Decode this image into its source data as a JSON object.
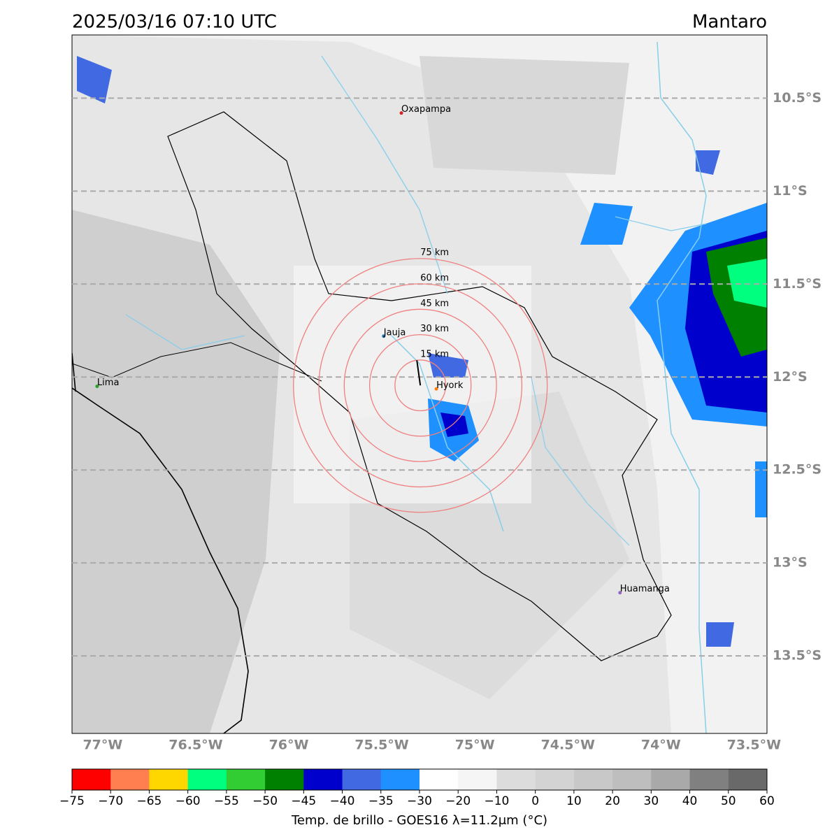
{
  "header": {
    "title": "2025/03/16 07:10 UTC",
    "region": "Mantaro"
  },
  "map": {
    "lon_extent": [
      -77.165,
      -73.43
    ],
    "lat_extent": [
      -10.16,
      -13.917
    ],
    "lat_ticks": [
      {
        "value": -10.5,
        "label": "10.5°S"
      },
      {
        "value": -11,
        "label": "11°S"
      },
      {
        "value": -11.5,
        "label": "11.5°S"
      },
      {
        "value": -12,
        "label": "12°S"
      },
      {
        "value": -12.5,
        "label": "12.5°S"
      },
      {
        "value": -13,
        "label": "13°S"
      },
      {
        "value": -13.5,
        "label": "13.5°S"
      }
    ],
    "lon_ticks": [
      {
        "value": -77,
        "label": "77°W"
      },
      {
        "value": -76.5,
        "label": "76.5°W"
      },
      {
        "value": -76,
        "label": "76°W"
      },
      {
        "value": -75.5,
        "label": "75.5°W"
      },
      {
        "value": -75,
        "label": "75°W"
      },
      {
        "value": -74.5,
        "label": "74.5°W"
      },
      {
        "value": -74,
        "label": "74°W"
      },
      {
        "value": -73.5,
        "label": "73.5°W"
      }
    ],
    "cities": [
      {
        "name": "Oxapampa",
        "lon": -75.395,
        "lat": -10.58,
        "color": "#d62728"
      },
      {
        "name": "Jauja",
        "lon": -75.49,
        "lat": -11.78,
        "color": "#1f77b4"
      },
      {
        "name": "Lima",
        "lon": -77.03,
        "lat": -12.05,
        "color": "#2ca02c"
      },
      {
        "name": "Hyork",
        "lon": -75.207,
        "lat": -12.064,
        "color": "#ff7f0e"
      },
      {
        "name": "Huamanga",
        "lon": -74.22,
        "lat": -13.16,
        "color": "#9467bd"
      }
    ],
    "rings": {
      "lon": -75.293,
      "lat": -12.045,
      "color": "#f08080",
      "radii": [
        {
          "value": 15,
          "label": "15 km"
        },
        {
          "value": 30,
          "label": "30 km"
        },
        {
          "value": 45,
          "label": "45 km"
        },
        {
          "value": 60,
          "label": "60 km"
        },
        {
          "value": 75,
          "label": "75 km"
        }
      ]
    }
  },
  "colorbar": {
    "label": "Temp. de brillo - GOES16 λ=11.2μm (°C)",
    "colors": [
      "#ff0000",
      "#ff7f50",
      "#ffd700",
      "#00ff7f",
      "#32cd32",
      "#008000",
      "#0000cd",
      "#4169e1",
      "#1e90ff",
      "#ffffff",
      "#f5f5f5",
      "#dcdcdc",
      "#d3d3d3",
      "#c8c8c8",
      "#bebebe",
      "#a9a9a9",
      "#808080",
      "#696969",
      "#000000"
    ],
    "ticks": [
      {
        "value": -75,
        "label": "−75"
      },
      {
        "value": -70,
        "label": "−70"
      },
      {
        "value": -65,
        "label": "−65"
      },
      {
        "value": -60,
        "label": "−60"
      },
      {
        "value": -55,
        "label": "−55"
      },
      {
        "value": -50,
        "label": "−50"
      },
      {
        "value": -45,
        "label": "−45"
      },
      {
        "value": -40,
        "label": "−40"
      },
      {
        "value": -35,
        "label": "−35"
      },
      {
        "value": -30,
        "label": "−30"
      },
      {
        "value": -20,
        "label": "−20"
      },
      {
        "value": -10,
        "label": "−10"
      },
      0,
      10,
      20,
      30,
      40,
      50,
      60
    ]
  }
}
